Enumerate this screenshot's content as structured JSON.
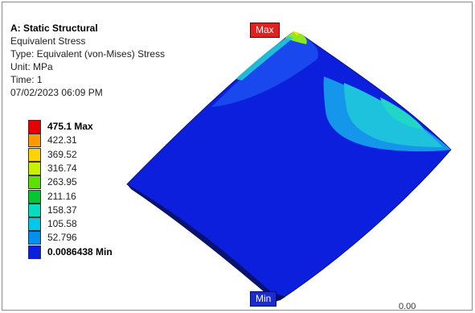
{
  "header": {
    "title": "A: Static Structural",
    "result": "Equivalent Stress",
    "type": "Type: Equivalent (von-Mises) Stress",
    "unit": "Unit: MPa",
    "time": "Time: 1",
    "datetime": "07/02/2023 06:09 PM"
  },
  "legend": {
    "entries": [
      {
        "label": "475.1 Max",
        "color": "#e60000",
        "bold": true
      },
      {
        "label": "422.31",
        "color": "#ff9a00"
      },
      {
        "label": "369.52",
        "color": "#ffd400"
      },
      {
        "label": "316.74",
        "color": "#c8f000"
      },
      {
        "label": "263.95",
        "color": "#5be000"
      },
      {
        "label": "211.16",
        "color": "#00c830"
      },
      {
        "label": "158.37",
        "color": "#00e0c0"
      },
      {
        "label": "105.58",
        "color": "#00c8e8"
      },
      {
        "label": "52.796",
        "color": "#0090f0"
      },
      {
        "label": "0.0086438 Min",
        "color": "#0a1ee0",
        "bold": true
      }
    ]
  },
  "probes": {
    "max_label": "Max",
    "min_label": "Min"
  },
  "scale": {
    "value": "0.00"
  },
  "colors": {
    "max_tag": "#e12020",
    "min_tag": "#1a2bd0",
    "model_base": "#0a1ee0"
  }
}
